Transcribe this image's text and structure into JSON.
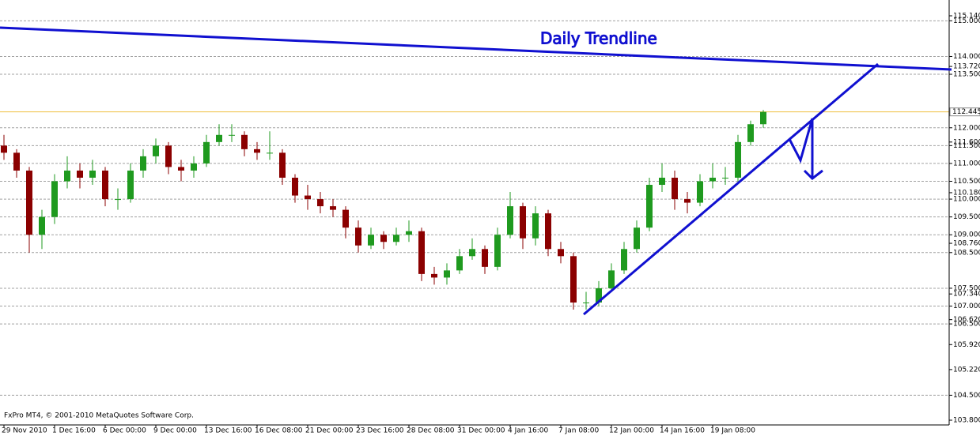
{
  "chart_data": {
    "type": "candlestick",
    "title": "Daily Trendline",
    "footer": "FxPro MT4, © 2001-2010 MetaQuotes Software Corp.",
    "categories": [
      "29 Nov 2010",
      null,
      null,
      null,
      "1 Dec 16:00",
      null,
      null,
      null,
      "6 Dec 00:00",
      null,
      null,
      null,
      "9 Dec 00:00",
      null,
      null,
      null,
      "13 Dec 16:00",
      null,
      null,
      null,
      "16 Dec 08:00",
      null,
      null,
      null,
      "21 Dec 00:00",
      null,
      null,
      null,
      "23 Dec 16:00",
      null,
      null,
      null,
      "28 Dec 08:00",
      null,
      null,
      null,
      "31 Dec 00:00",
      null,
      null,
      null,
      "4 Jan 16:00",
      null,
      null,
      null,
      "7 Jan 08:00",
      null,
      null,
      null,
      "12 Jan 00:00",
      null,
      null,
      null,
      "14 Jan 16:00",
      null,
      null,
      null,
      "19 Jan 08:00",
      null,
      null,
      null,
      null
    ],
    "open": [
      111.5,
      111.3,
      110.8,
      109.0,
      109.5,
      110.5,
      110.8,
      110.6,
      110.8,
      110.0,
      110.0,
      110.8,
      111.2,
      111.5,
      110.9,
      110.8,
      111.0,
      111.6,
      111.8,
      111.8,
      111.4,
      111.3,
      111.3,
      110.6,
      110.1,
      110.0,
      109.8,
      109.7,
      109.2,
      108.7,
      109.0,
      108.8,
      109.0,
      109.1,
      107.9,
      107.8,
      108.0,
      108.4,
      108.6,
      108.1,
      109.0,
      109.8,
      108.9,
      109.6,
      108.6,
      108.4,
      107.1,
      107.1,
      107.5,
      108.0,
      108.6,
      109.2,
      110.4,
      110.6,
      110.0,
      109.9,
      110.5,
      110.6,
      110.6,
      111.6,
      112.1
    ],
    "high": [
      111.8,
      111.4,
      110.9,
      109.7,
      110.7,
      111.2,
      111.0,
      111.1,
      110.9,
      110.3,
      111.0,
      111.4,
      111.7,
      111.6,
      111.1,
      111.2,
      111.8,
      112.1,
      112.1,
      111.9,
      111.6,
      111.9,
      111.4,
      110.7,
      110.4,
      110.2,
      110.0,
      109.8,
      109.4,
      109.2,
      109.1,
      109.2,
      109.4,
      109.2,
      108.1,
      108.2,
      108.6,
      108.9,
      108.7,
      109.2,
      110.2,
      109.9,
      109.8,
      109.7,
      108.8,
      108.5,
      107.4,
      107.7,
      108.2,
      108.8,
      109.4,
      110.6,
      111.0,
      110.8,
      110.2,
      110.7,
      111.0,
      110.9,
      111.8,
      112.2,
      112.5
    ],
    "low": [
      111.1,
      110.6,
      108.5,
      108.6,
      109.3,
      110.3,
      110.3,
      110.4,
      109.8,
      109.7,
      109.9,
      110.6,
      111.0,
      110.7,
      110.5,
      110.6,
      110.9,
      111.5,
      111.6,
      111.2,
      111.1,
      111.1,
      110.4,
      109.9,
      109.7,
      109.6,
      109.5,
      108.9,
      108.5,
      108.6,
      108.6,
      108.7,
      108.8,
      107.7,
      107.6,
      107.6,
      107.9,
      108.3,
      107.9,
      108.0,
      108.9,
      108.6,
      108.7,
      108.4,
      108.2,
      106.9,
      106.9,
      107.0,
      107.4,
      107.9,
      108.5,
      109.1,
      110.2,
      109.7,
      109.6,
      109.8,
      110.3,
      110.4,
      110.5,
      111.5,
      112.0
    ],
    "close": [
      111.3,
      110.8,
      109.0,
      109.5,
      110.5,
      110.8,
      110.6,
      110.8,
      110.0,
      110.0,
      110.8,
      111.2,
      111.5,
      110.9,
      110.8,
      111.0,
      111.6,
      111.8,
      111.8,
      111.4,
      111.3,
      111.3,
      110.6,
      110.1,
      110.0,
      109.8,
      109.7,
      109.2,
      108.7,
      109.0,
      108.8,
      109.0,
      109.1,
      107.9,
      107.8,
      108.0,
      108.4,
      108.6,
      108.1,
      109.0,
      109.8,
      108.9,
      109.6,
      108.6,
      108.4,
      107.1,
      107.1,
      107.5,
      108.0,
      108.6,
      109.2,
      110.4,
      110.6,
      110.0,
      109.9,
      110.5,
      110.6,
      110.6,
      111.6,
      112.1,
      112.445
    ],
    "up_color": "#1f9a1f",
    "down_color": "#8b0000",
    "current_price": 112.445,
    "current_price_color": "#f0c040",
    "annotation_color": "#1010d0",
    "ylim": [
      103.667,
      115.583
    ],
    "yticks": [
      {
        "value": 115.14,
        "label": "115.140"
      },
      {
        "value": 115,
        "label": "115.000"
      },
      {
        "value": 114,
        "label": "114.000"
      },
      {
        "value": 113.72,
        "label": "113.720"
      },
      {
        "value": 113.5,
        "label": "113.500"
      },
      {
        "value": 112,
        "label": "112.000"
      },
      {
        "value": 111.6,
        "label": "111.600"
      },
      {
        "value": 111.5,
        "label": "111.500"
      },
      {
        "value": 111,
        "label": "111.000"
      },
      {
        "value": 110.5,
        "label": "110.500"
      },
      {
        "value": 110.18,
        "label": "110.180"
      },
      {
        "value": 110,
        "label": "110.000"
      },
      {
        "value": 109.5,
        "label": "109.500"
      },
      {
        "value": 109,
        "label": "109.000"
      },
      {
        "value": 108.76,
        "label": "108.760"
      },
      {
        "value": 108.5,
        "label": "108.500"
      },
      {
        "value": 107.5,
        "label": "107.500"
      },
      {
        "value": 107.34,
        "label": "107.340"
      },
      {
        "value": 107,
        "label": "107.000"
      },
      {
        "value": 106.62,
        "label": "106.620"
      },
      {
        "value": 106.5,
        "label": "106.500"
      },
      {
        "value": 105.92,
        "label": "105.920"
      },
      {
        "value": 105.22,
        "label": "105.220"
      },
      {
        "value": 104.5,
        "label": "104.500"
      },
      {
        "value": 103.8,
        "label": "103.800"
      }
    ],
    "grid": true
  }
}
